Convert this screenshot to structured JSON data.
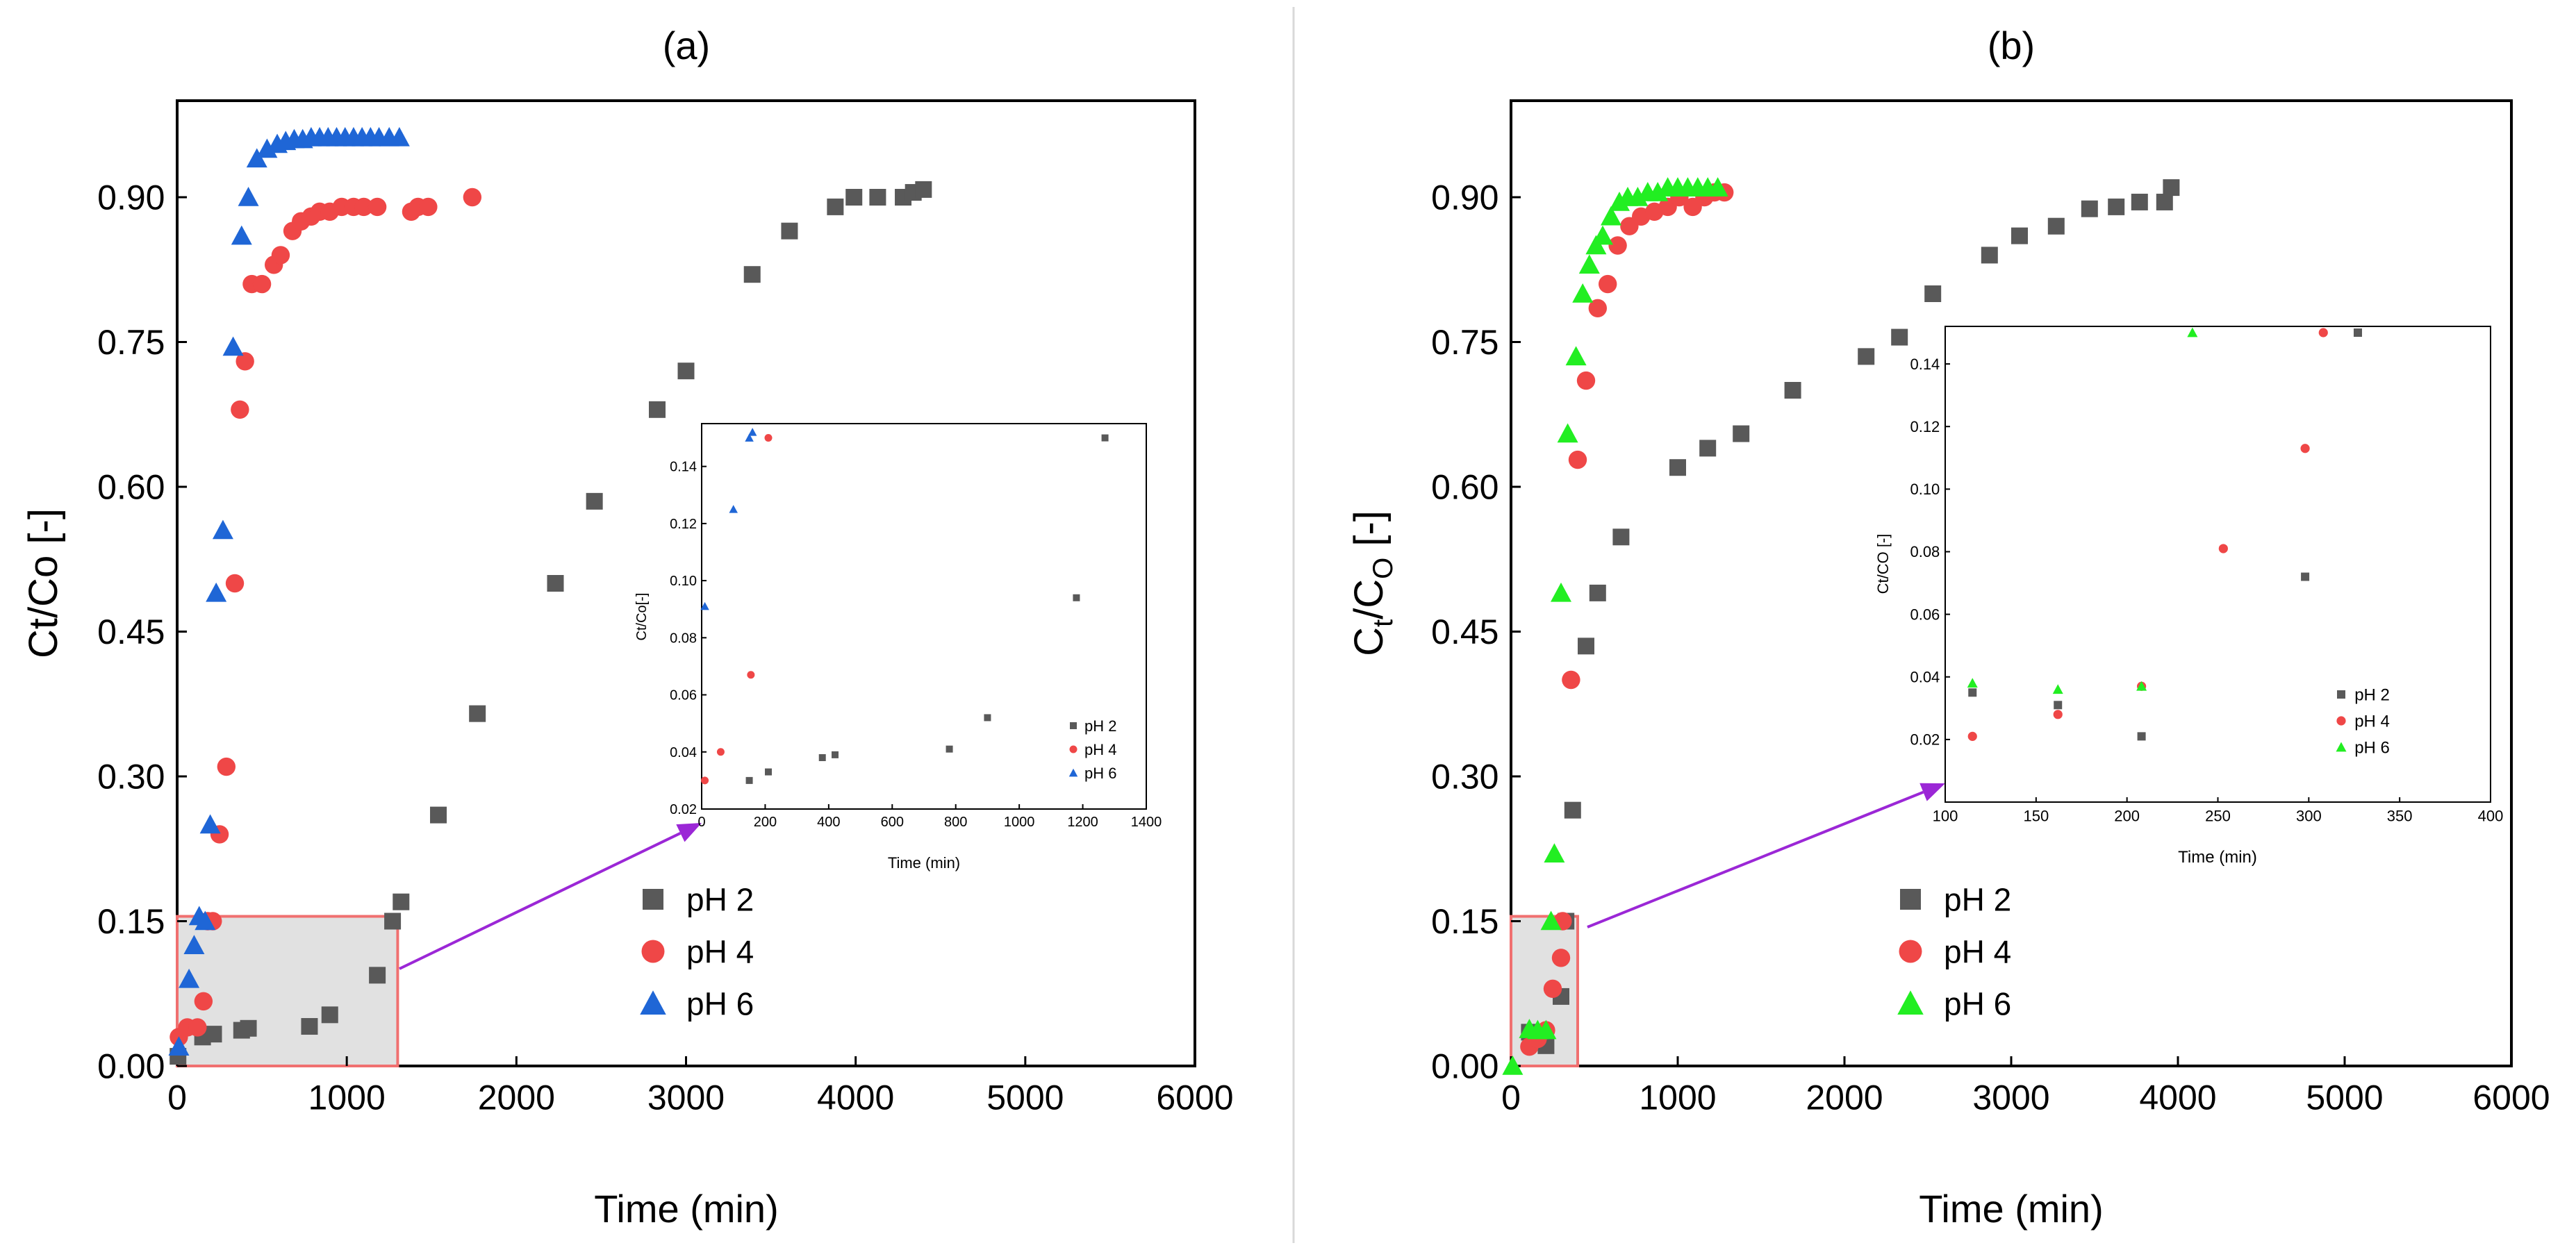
{
  "chart_data": [
    {
      "id": "a",
      "type": "scatter",
      "title": "(a)",
      "xlabel": "Time (min)",
      "ylabel": "Ct/Co [-]",
      "xlim": [
        0,
        6000
      ],
      "ylim": [
        0,
        1.0
      ],
      "xticks": [
        "0",
        "1000",
        "2000",
        "3000",
        "4000",
        "5000",
        "6000"
      ],
      "xtick_values": [
        0,
        1000,
        2000,
        3000,
        4000,
        5000,
        6000
      ],
      "yticks": [
        "0.00",
        "0.15",
        "0.30",
        "0.45",
        "0.60",
        "0.75",
        "0.90"
      ],
      "ytick_values": [
        0,
        0.15,
        0.3,
        0.45,
        0.6,
        0.75,
        0.9
      ],
      "legend": [
        "pH 2",
        "pH 4",
        "pH 6"
      ],
      "highlight": {
        "x": [
          0,
          1300
        ],
        "y": [
          0,
          0.155
        ]
      },
      "series": [
        {
          "name": "pH 2",
          "marker": "square",
          "color": "#595959",
          "x": [
            5,
            150,
            215,
            380,
            420,
            780,
            900,
            1180,
            1270,
            1320,
            1540,
            1770,
            2230,
            2460,
            2830,
            3000,
            3390,
            3610,
            3880,
            3990,
            4130,
            4280,
            4340,
            4400
          ],
          "y": [
            0.01,
            0.03,
            0.033,
            0.037,
            0.039,
            0.041,
            0.053,
            0.094,
            0.15,
            0.17,
            0.26,
            0.365,
            0.5,
            0.585,
            0.68,
            0.72,
            0.82,
            0.865,
            0.89,
            0.9,
            0.9,
            0.9,
            0.905,
            0.908
          ]
        },
        {
          "name": "pH 4",
          "marker": "circle",
          "color": "#ef4747",
          "x": [
            10,
            60,
            120,
            155,
            180,
            210,
            250,
            290,
            340,
            370,
            400,
            440,
            500,
            570,
            610,
            680,
            730,
            790,
            840,
            900,
            970,
            1040,
            1100,
            1180,
            1380,
            1420,
            1480,
            1740
          ],
          "y": [
            0.03,
            0.04,
            0.04,
            0.067,
            0.15,
            0.15,
            0.24,
            0.31,
            0.5,
            0.68,
            0.73,
            0.81,
            0.81,
            0.83,
            0.84,
            0.865,
            0.875,
            0.88,
            0.885,
            0.885,
            0.89,
            0.89,
            0.89,
            0.89,
            0.885,
            0.89,
            0.89,
            0.9
          ]
        },
        {
          "name": "pH 6",
          "marker": "triangle",
          "color": "#1f66d6",
          "x": [
            10,
            70,
            100,
            130,
            165,
            195,
            230,
            270,
            330,
            380,
            420,
            470,
            530,
            590,
            640,
            690,
            740,
            790,
            840,
            890,
            940,
            990,
            1040,
            1090,
            1140,
            1190,
            1250,
            1310
          ],
          "y": [
            0.02,
            0.09,
            0.125,
            0.155,
            0.15,
            0.25,
            0.49,
            0.555,
            0.745,
            0.86,
            0.9,
            0.94,
            0.95,
            0.955,
            0.958,
            0.96,
            0.96,
            0.962,
            0.962,
            0.962,
            0.962,
            0.962,
            0.962,
            0.962,
            0.962,
            0.962,
            0.962,
            0.962
          ]
        }
      ],
      "inset": {
        "xlabel": "Time (min)",
        "ylabel": "Ct/Co[-]",
        "xlim": [
          0,
          1400
        ],
        "ylim": [
          0.02,
          0.155
        ],
        "xticks": [
          "0",
          "200",
          "400",
          "600",
          "800",
          "1000",
          "1200",
          "1400"
        ],
        "xtick_values": [
          0,
          200,
          400,
          600,
          800,
          1000,
          1200,
          1400
        ],
        "yticks": [
          "0.02",
          "0.04",
          "0.06",
          "0.08",
          "0.10",
          "0.12",
          "0.14"
        ],
        "ytick_values": [
          0.02,
          0.04,
          0.06,
          0.08,
          0.1,
          0.12,
          0.14
        ],
        "legend": [
          "pH 2",
          "pH 4",
          "pH 6"
        ],
        "series": [
          {
            "name": "pH 2",
            "marker": "square",
            "color": "#595959",
            "x": [
              150,
              210,
              380,
              420,
              780,
              900,
              1180,
              1270
            ],
            "y": [
              0.03,
              0.033,
              0.038,
              0.039,
              0.041,
              0.052,
              0.094,
              0.15
            ]
          },
          {
            "name": "pH 4",
            "marker": "circle",
            "color": "#ef4747",
            "x": [
              10,
              60,
              155,
              210
            ],
            "y": [
              0.03,
              0.04,
              0.067,
              0.15
            ]
          },
          {
            "name": "pH 6",
            "marker": "triangle",
            "color": "#1f66d6",
            "x": [
              10,
              100,
              150,
              160
            ],
            "y": [
              0.091,
              0.125,
              0.15,
              0.152
            ]
          }
        ]
      }
    },
    {
      "id": "b",
      "type": "scatter",
      "title": "(b)",
      "xlabel": "Time (min)",
      "ylabel_main": "C",
      "ylabel_sub1": "t",
      "ylabel_mid": "/C",
      "ylabel_sub2": "O",
      "ylabel_suffix": " [-]",
      "xlim": [
        0,
        6000
      ],
      "ylim": [
        0,
        1.0
      ],
      "xticks": [
        "0",
        "1000",
        "2000",
        "3000",
        "4000",
        "5000",
        "6000"
      ],
      "xtick_values": [
        0,
        1000,
        2000,
        3000,
        4000,
        5000,
        6000
      ],
      "yticks": [
        "0.00",
        "0.15",
        "0.30",
        "0.45",
        "0.60",
        "0.75",
        "0.90"
      ],
      "ytick_values": [
        0,
        0.15,
        0.3,
        0.45,
        0.6,
        0.75,
        0.9
      ],
      "legend": [
        "pH 2",
        "pH 4",
        "pH 6"
      ],
      "highlight": {
        "x": [
          0,
          400
        ],
        "y": [
          0,
          0.155
        ]
      },
      "series": [
        {
          "name": "pH 2",
          "marker": "square",
          "color": "#595959",
          "x": [
            110,
            160,
            210,
            300,
            330,
            370,
            450,
            520,
            660,
            1000,
            1180,
            1380,
            1690,
            2130,
            2330,
            2530,
            2870,
            3050,
            3270,
            3470,
            3630,
            3770,
            3920,
            3960
          ],
          "y": [
            0.035,
            0.031,
            0.021,
            0.072,
            0.15,
            0.265,
            0.435,
            0.49,
            0.548,
            0.62,
            0.64,
            0.655,
            0.7,
            0.735,
            0.755,
            0.8,
            0.84,
            0.86,
            0.87,
            0.888,
            0.89,
            0.895,
            0.895,
            0.91
          ]
        },
        {
          "name": "pH 4",
          "marker": "circle",
          "color": "#ef4747",
          "x": [
            110,
            160,
            210,
            250,
            300,
            310,
            360,
            400,
            450,
            520,
            580,
            640,
            710,
            780,
            860,
            940,
            1010,
            1090,
            1160,
            1220,
            1280
          ],
          "y": [
            0.02,
            0.028,
            0.037,
            0.08,
            0.112,
            0.15,
            0.4,
            0.628,
            0.71,
            0.785,
            0.81,
            0.85,
            0.87,
            0.88,
            0.885,
            0.89,
            0.9,
            0.89,
            0.9,
            0.905,
            0.905
          ]
        },
        {
          "name": "pH 6",
          "marker": "triangle",
          "color": "#22ee22",
          "x": [
            10,
            110,
            160,
            210,
            240,
            260,
            300,
            340,
            390,
            430,
            470,
            510,
            550,
            600,
            650,
            700,
            760,
            820,
            880,
            940,
            1000,
            1060,
            1120,
            1180,
            1240
          ],
          "y": [
            0.0,
            0.038,
            0.037,
            0.037,
            0.15,
            0.22,
            0.49,
            0.655,
            0.735,
            0.8,
            0.83,
            0.85,
            0.86,
            0.88,
            0.895,
            0.9,
            0.9,
            0.905,
            0.905,
            0.91,
            0.91,
            0.91,
            0.91,
            0.91,
            0.91
          ]
        }
      ],
      "inset": {
        "xlabel": "Time (min)",
        "ylabel": "Ct/CO [-]",
        "xlim": [
          100,
          400
        ],
        "ylim": [
          0.0,
          0.152
        ],
        "xticks": [
          "100",
          "150",
          "200",
          "250",
          "300",
          "350",
          "400"
        ],
        "xtick_values": [
          100,
          150,
          200,
          250,
          300,
          350,
          400
        ],
        "yticks": [
          "0.02",
          "0.04",
          "0.06",
          "0.08",
          "0.10",
          "0.12",
          "0.14"
        ],
        "ytick_values": [
          0.02,
          0.04,
          0.06,
          0.08,
          0.1,
          0.12,
          0.14
        ],
        "legend": [
          "pH 2",
          "pH 4",
          "pH 6"
        ],
        "series": [
          {
            "name": "pH 2",
            "marker": "square",
            "color": "#595959",
            "x": [
              115,
              162,
              208,
              298,
              327
            ],
            "y": [
              0.035,
              0.031,
              0.021,
              0.072,
              0.15
            ]
          },
          {
            "name": "pH 4",
            "marker": "circle",
            "color": "#ef4747",
            "x": [
              115,
              162,
              208,
              253,
              298,
              308
            ],
            "y": [
              0.021,
              0.028,
              0.037,
              0.081,
              0.113,
              0.15
            ]
          },
          {
            "name": "pH 6",
            "marker": "triangle",
            "color": "#22ee22",
            "x": [
              115,
              162,
              208,
              236
            ],
            "y": [
              0.038,
              0.036,
              0.037,
              0.15
            ]
          }
        ]
      }
    }
  ],
  "colors": {
    "arrow": "#9b27d6",
    "highlight_fill": "#d9d9d9",
    "highlight_stroke": "#f07070",
    "axis": "#000000"
  }
}
